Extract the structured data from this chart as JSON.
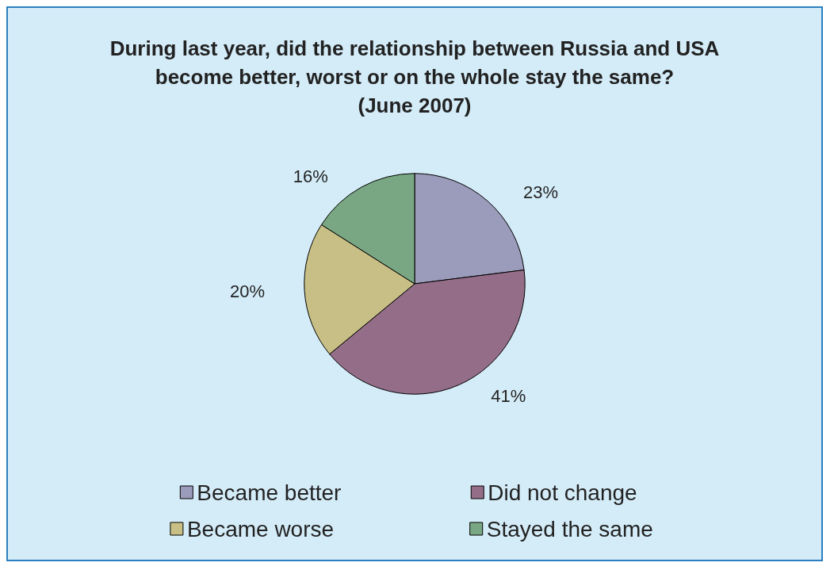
{
  "chart_data": {
    "type": "pie",
    "title": "During last year, did the relationship between Russia and USA\nbecome better, worst or on the whole stay the same?\n(June 2007)",
    "categories": [
      "Became better",
      "Did not change",
      "Became worse",
      "Stayed the same"
    ],
    "values": [
      23,
      41,
      20,
      16
    ],
    "value_labels": [
      "23%",
      "41%",
      "20%",
      "16%"
    ],
    "colors": [
      "#9b9bbb",
      "#946e88",
      "#c8bf86",
      "#7aa783"
    ],
    "legend": "bottom"
  }
}
